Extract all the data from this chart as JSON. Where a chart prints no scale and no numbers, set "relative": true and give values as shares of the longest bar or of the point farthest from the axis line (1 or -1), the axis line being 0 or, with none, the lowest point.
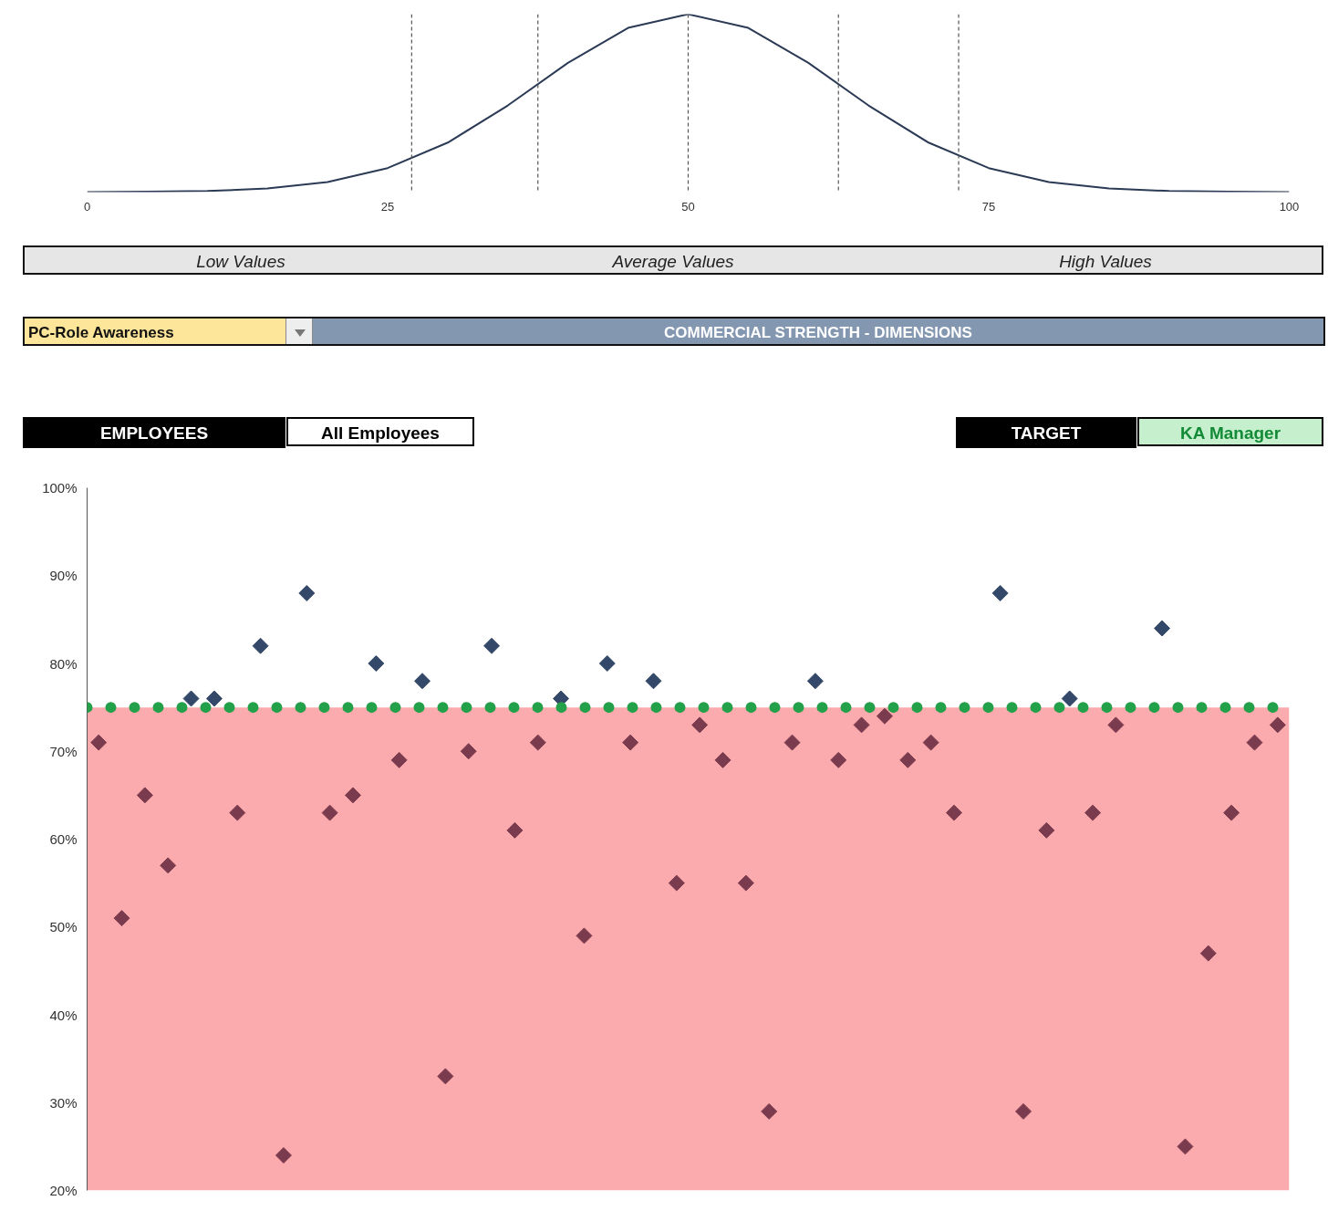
{
  "chart_data": [
    {
      "type": "line",
      "relative": true,
      "color": "#2b3a55",
      "x": [
        0,
        5,
        10,
        15,
        20,
        25,
        30,
        35,
        40,
        45,
        50,
        55,
        60,
        65,
        70,
        75,
        80,
        85,
        90,
        95,
        100
      ],
      "values": [
        0,
        0.002,
        0.006,
        0.02,
        0.056,
        0.135,
        0.278,
        0.487,
        0.726,
        0.923,
        1,
        0.923,
        0.726,
        0.487,
        0.278,
        0.135,
        0.056,
        0.02,
        0.006,
        0.002,
        0
      ],
      "xlim": [
        0,
        100
      ],
      "xticks": [
        0,
        25,
        50,
        75,
        100
      ],
      "tick_labels": "x",
      "grid": false,
      "ref_lines": [
        {
          "axis": "x",
          "value": 27,
          "color": "#555555",
          "line_style": "dashed"
        },
        {
          "axis": "x",
          "value": 37.5,
          "color": "#555555",
          "line_style": "dashed"
        },
        {
          "axis": "x",
          "value": 50,
          "color": "#555555",
          "line_style": "dashed"
        },
        {
          "axis": "x",
          "value": 62.5,
          "color": "#555555",
          "line_style": "dashed"
        },
        {
          "axis": "x",
          "value": 72.5,
          "color": "#555555",
          "line_style": "dashed"
        }
      ],
      "annotations": [
        "Low Values",
        "Average Values",
        "High Values"
      ]
    },
    {
      "type": "scatter",
      "title": "COMMERCIAL STRENGTH - DIMENSIONS",
      "marker": "diamond",
      "grid": false,
      "tick_labels": "y",
      "annotations": [
        "PC-Role Awareness",
        "EMPLOYEES",
        "All Employees",
        "TARGET",
        "KA Manager"
      ],
      "categories": [
        null,
        null,
        null,
        null,
        null,
        null,
        null,
        null,
        null,
        null,
        null,
        null,
        null,
        null,
        null,
        null,
        null,
        null,
        null,
        null,
        null,
        null,
        null,
        null,
        null,
        null,
        null,
        null,
        null,
        null,
        null,
        null,
        null,
        null,
        null,
        null,
        null,
        null,
        null,
        null,
        null,
        null,
        null,
        null,
        null,
        null,
        null,
        null,
        null,
        null,
        null,
        null
      ],
      "series": [
        {
          "color": "#34496a",
          "values": [
            null,
            null,
            null,
            null,
            76,
            76,
            null,
            82,
            null,
            88,
            null,
            null,
            80,
            null,
            78,
            null,
            null,
            82,
            null,
            null,
            76,
            null,
            80,
            null,
            78,
            null,
            null,
            null,
            null,
            null,
            null,
            78,
            null,
            null,
            null,
            null,
            null,
            null,
            null,
            88,
            null,
            null,
            76,
            null,
            null,
            null,
            84,
            null,
            null,
            null,
            null,
            null
          ]
        },
        {
          "color": "#7b3b4e",
          "values": [
            71,
            51,
            65,
            57,
            null,
            null,
            63,
            null,
            24,
            null,
            63,
            65,
            null,
            69,
            null,
            33,
            70,
            null,
            61,
            71,
            null,
            49,
            null,
            71,
            null,
            55,
            73,
            69,
            55,
            29,
            71,
            null,
            69,
            73,
            74,
            69,
            71,
            63,
            null,
            null,
            29,
            61,
            null,
            63,
            73,
            null,
            null,
            25,
            47,
            63,
            71,
            73
          ]
        }
      ],
      "ylim": [
        20,
        100
      ],
      "yticks": [
        {
          "value": 20,
          "label": "20%"
        },
        {
          "value": 30,
          "label": "30%"
        },
        {
          "value": 40,
          "label": "40%"
        },
        {
          "value": 50,
          "label": "50%"
        },
        {
          "value": 60,
          "label": "60%"
        },
        {
          "value": 70,
          "label": "70%"
        },
        {
          "value": 80,
          "label": "80%"
        },
        {
          "value": 90,
          "label": "90%"
        },
        {
          "value": 100,
          "label": "100%"
        }
      ],
      "ref_lines": [
        {
          "axis": "y",
          "value": 75,
          "color": "#22a04a",
          "line_style": "dotted"
        }
      ],
      "bands": [
        {
          "axis": "y",
          "from": 20,
          "to": 75,
          "color": "#fbabad"
        }
      ]
    }
  ]
}
